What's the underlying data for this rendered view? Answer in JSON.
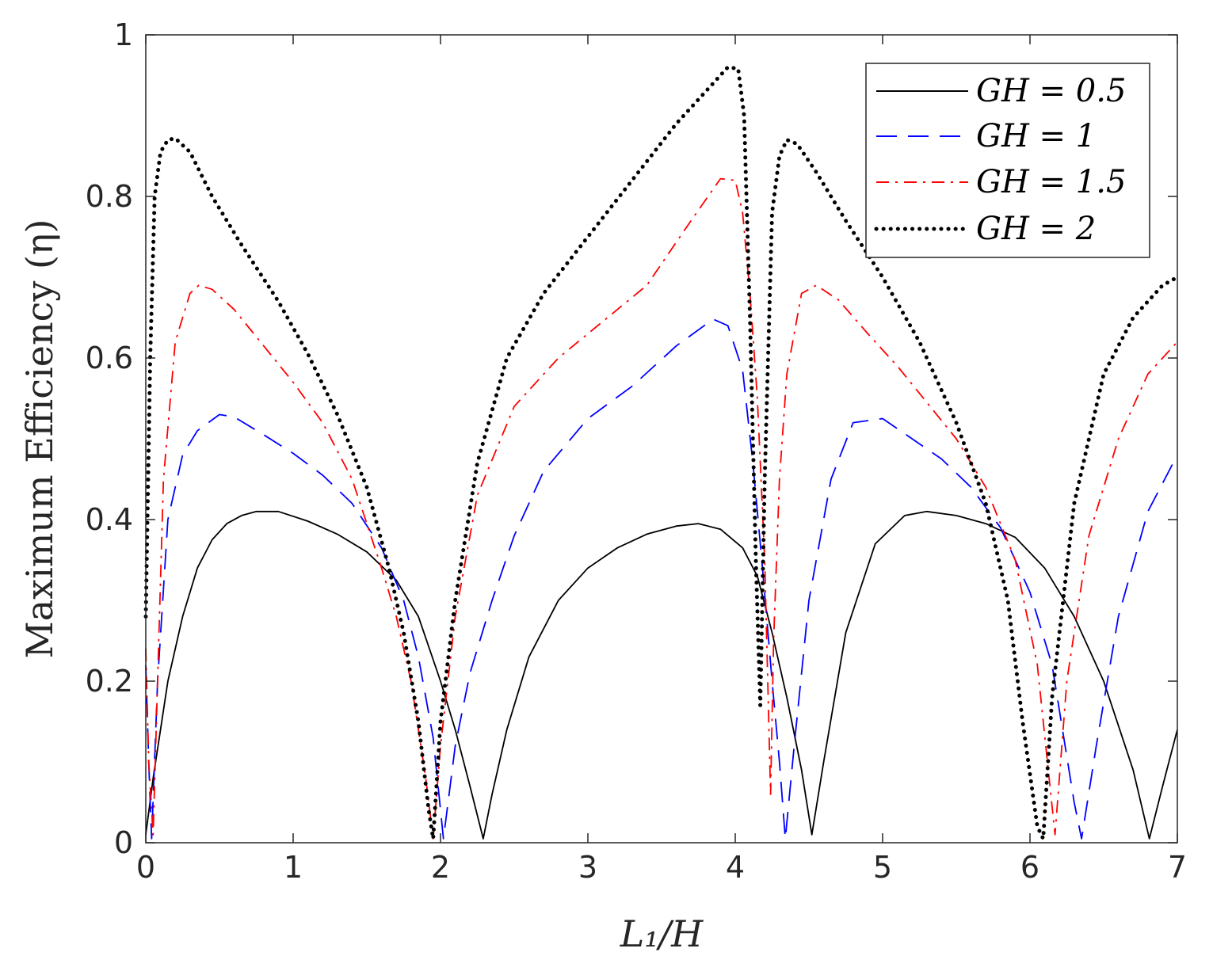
{
  "chart_data": {
    "type": "line",
    "title": "",
    "xlabel": "L₁/H",
    "ylabel": "Maximum Efficiency (η)",
    "xlim": [
      0,
      7
    ],
    "ylim": [
      0,
      1
    ],
    "xticks": [
      "0",
      "1",
      "2",
      "3",
      "4",
      "5",
      "6",
      "7"
    ],
    "yticks": [
      "0",
      "0.2",
      "0.4",
      "0.6",
      "0.8",
      "1"
    ],
    "legend_position": "top-right",
    "grid": false,
    "series": [
      {
        "name": "GH = 0.5",
        "color": "#000000",
        "style": "solid",
        "x": [
          0,
          0.05,
          0.15,
          0.25,
          0.35,
          0.45,
          0.55,
          0.65,
          0.75,
          0.9,
          1.1,
          1.3,
          1.5,
          1.7,
          1.85,
          2.0,
          2.1,
          2.2,
          2.29,
          2.35,
          2.45,
          2.6,
          2.8,
          3.0,
          3.2,
          3.4,
          3.6,
          3.75,
          3.9,
          4.05,
          4.15,
          4.25,
          4.35,
          4.45,
          4.52,
          4.6,
          4.75,
          4.95,
          5.15,
          5.3,
          5.5,
          5.7,
          5.9,
          6.1,
          6.3,
          6.5,
          6.7,
          6.81,
          6.9,
          7.0
        ],
        "y": [
          0.01,
          0.08,
          0.2,
          0.28,
          0.34,
          0.375,
          0.395,
          0.405,
          0.41,
          0.41,
          0.398,
          0.382,
          0.36,
          0.325,
          0.28,
          0.2,
          0.14,
          0.07,
          0.005,
          0.06,
          0.14,
          0.23,
          0.3,
          0.34,
          0.365,
          0.382,
          0.392,
          0.395,
          0.388,
          0.365,
          0.33,
          0.26,
          0.18,
          0.09,
          0.01,
          0.1,
          0.26,
          0.37,
          0.405,
          0.41,
          0.405,
          0.395,
          0.378,
          0.34,
          0.28,
          0.2,
          0.09,
          0.005,
          0.07,
          0.14
        ]
      },
      {
        "name": "GH = 1",
        "color": "#0000ff",
        "style": "dashed",
        "x": [
          0,
          0.02,
          0.04,
          0.08,
          0.15,
          0.25,
          0.35,
          0.5,
          0.6,
          0.8,
          1.0,
          1.2,
          1.4,
          1.6,
          1.75,
          1.85,
          1.95,
          2.02,
          2.1,
          2.2,
          2.35,
          2.5,
          2.7,
          3.0,
          3.3,
          3.6,
          3.85,
          3.95,
          4.05,
          4.12,
          4.18,
          4.25,
          4.3,
          4.34,
          4.4,
          4.5,
          4.65,
          4.8,
          5.0,
          5.2,
          5.4,
          5.6,
          5.8,
          6.0,
          6.15,
          6.3,
          6.35,
          6.45,
          6.6,
          6.8,
          7.0
        ],
        "y": [
          0.22,
          0.1,
          0.005,
          0.2,
          0.4,
          0.48,
          0.51,
          0.53,
          0.527,
          0.505,
          0.482,
          0.455,
          0.42,
          0.365,
          0.3,
          0.23,
          0.13,
          0.005,
          0.12,
          0.21,
          0.3,
          0.38,
          0.46,
          0.525,
          0.565,
          0.615,
          0.648,
          0.64,
          0.585,
          0.47,
          0.35,
          0.2,
          0.1,
          0.005,
          0.12,
          0.3,
          0.45,
          0.52,
          0.525,
          0.5,
          0.475,
          0.44,
          0.39,
          0.31,
          0.22,
          0.05,
          0.005,
          0.12,
          0.28,
          0.41,
          0.48
        ]
      },
      {
        "name": "GH = 1.5",
        "color": "#ff0000",
        "style": "dashdot",
        "x": [
          0,
          0.02,
          0.05,
          0.08,
          0.12,
          0.2,
          0.3,
          0.36,
          0.45,
          0.6,
          0.8,
          1.0,
          1.2,
          1.4,
          1.6,
          1.7,
          1.8,
          1.9,
          1.95,
          2.0,
          2.1,
          2.25,
          2.5,
          2.8,
          3.1,
          3.4,
          3.7,
          3.9,
          4.0,
          4.05,
          4.1,
          4.15,
          4.2,
          4.24,
          4.26,
          4.3,
          4.35,
          4.45,
          4.55,
          4.7,
          4.9,
          5.1,
          5.3,
          5.5,
          5.7,
          5.9,
          6.05,
          6.17,
          6.25,
          6.4,
          6.6,
          6.8,
          7.0
        ],
        "y": [
          0.24,
          0.1,
          0.01,
          0.2,
          0.45,
          0.62,
          0.68,
          0.69,
          0.685,
          0.66,
          0.615,
          0.57,
          0.52,
          0.45,
          0.34,
          0.28,
          0.2,
          0.08,
          0.005,
          0.12,
          0.28,
          0.43,
          0.54,
          0.6,
          0.645,
          0.69,
          0.77,
          0.822,
          0.82,
          0.78,
          0.68,
          0.55,
          0.35,
          0.06,
          0.25,
          0.45,
          0.58,
          0.68,
          0.69,
          0.672,
          0.63,
          0.59,
          0.545,
          0.5,
          0.44,
          0.35,
          0.22,
          0.01,
          0.2,
          0.38,
          0.5,
          0.58,
          0.62
        ]
      },
      {
        "name": "GH = 2",
        "color": "#000000",
        "style": "dotted",
        "x": [
          0,
          0.03,
          0.06,
          0.1,
          0.15,
          0.2,
          0.3,
          0.45,
          0.65,
          0.9,
          1.1,
          1.3,
          1.5,
          1.65,
          1.75,
          1.85,
          1.92,
          1.95,
          2.0,
          2.1,
          2.25,
          2.45,
          2.7,
          3.0,
          3.3,
          3.6,
          3.85,
          3.95,
          4.02,
          4.06,
          4.1,
          4.14,
          4.17,
          4.2,
          4.25,
          4.3,
          4.35,
          4.42,
          4.55,
          4.75,
          5.0,
          5.25,
          5.5,
          5.7,
          5.85,
          5.95,
          6.05,
          6.09,
          6.15,
          6.3,
          6.5,
          6.7,
          6.9,
          7.0
        ],
        "y": [
          0.28,
          0.6,
          0.8,
          0.855,
          0.87,
          0.872,
          0.855,
          0.8,
          0.74,
          0.67,
          0.605,
          0.53,
          0.44,
          0.34,
          0.26,
          0.15,
          0.04,
          0.005,
          0.15,
          0.3,
          0.47,
          0.6,
          0.68,
          0.75,
          0.82,
          0.89,
          0.94,
          0.96,
          0.958,
          0.9,
          0.65,
          0.35,
          0.17,
          0.45,
          0.78,
          0.85,
          0.87,
          0.865,
          0.83,
          0.77,
          0.7,
          0.62,
          0.52,
          0.42,
          0.3,
          0.15,
          0.02,
          0.005,
          0.18,
          0.42,
          0.58,
          0.65,
          0.69,
          0.7
        ]
      }
    ]
  }
}
